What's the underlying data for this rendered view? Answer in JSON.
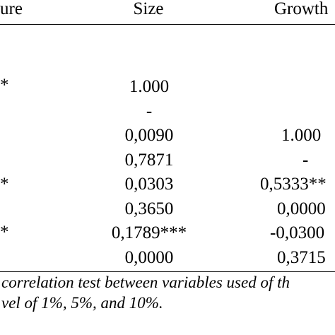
{
  "header": {
    "col_left_partial": "ure",
    "col_size": "Size",
    "col_growth_partial": "Growth"
  },
  "left_column_fragments": [
    "*",
    "*",
    "*"
  ],
  "size_column": [
    "1.000",
    "-",
    "0,0090",
    "0,7871",
    "0,0303",
    "0,3650",
    "0,1789***",
    "0,0000"
  ],
  "growth_column": [
    "1.000",
    "-",
    "0,5333**",
    "0,0000",
    "-0,0300",
    "0,3715"
  ],
  "caption": {
    "line1": "correlation test between variables used of th",
    "line2": "vel of 1%, 5%, and 10%."
  }
}
